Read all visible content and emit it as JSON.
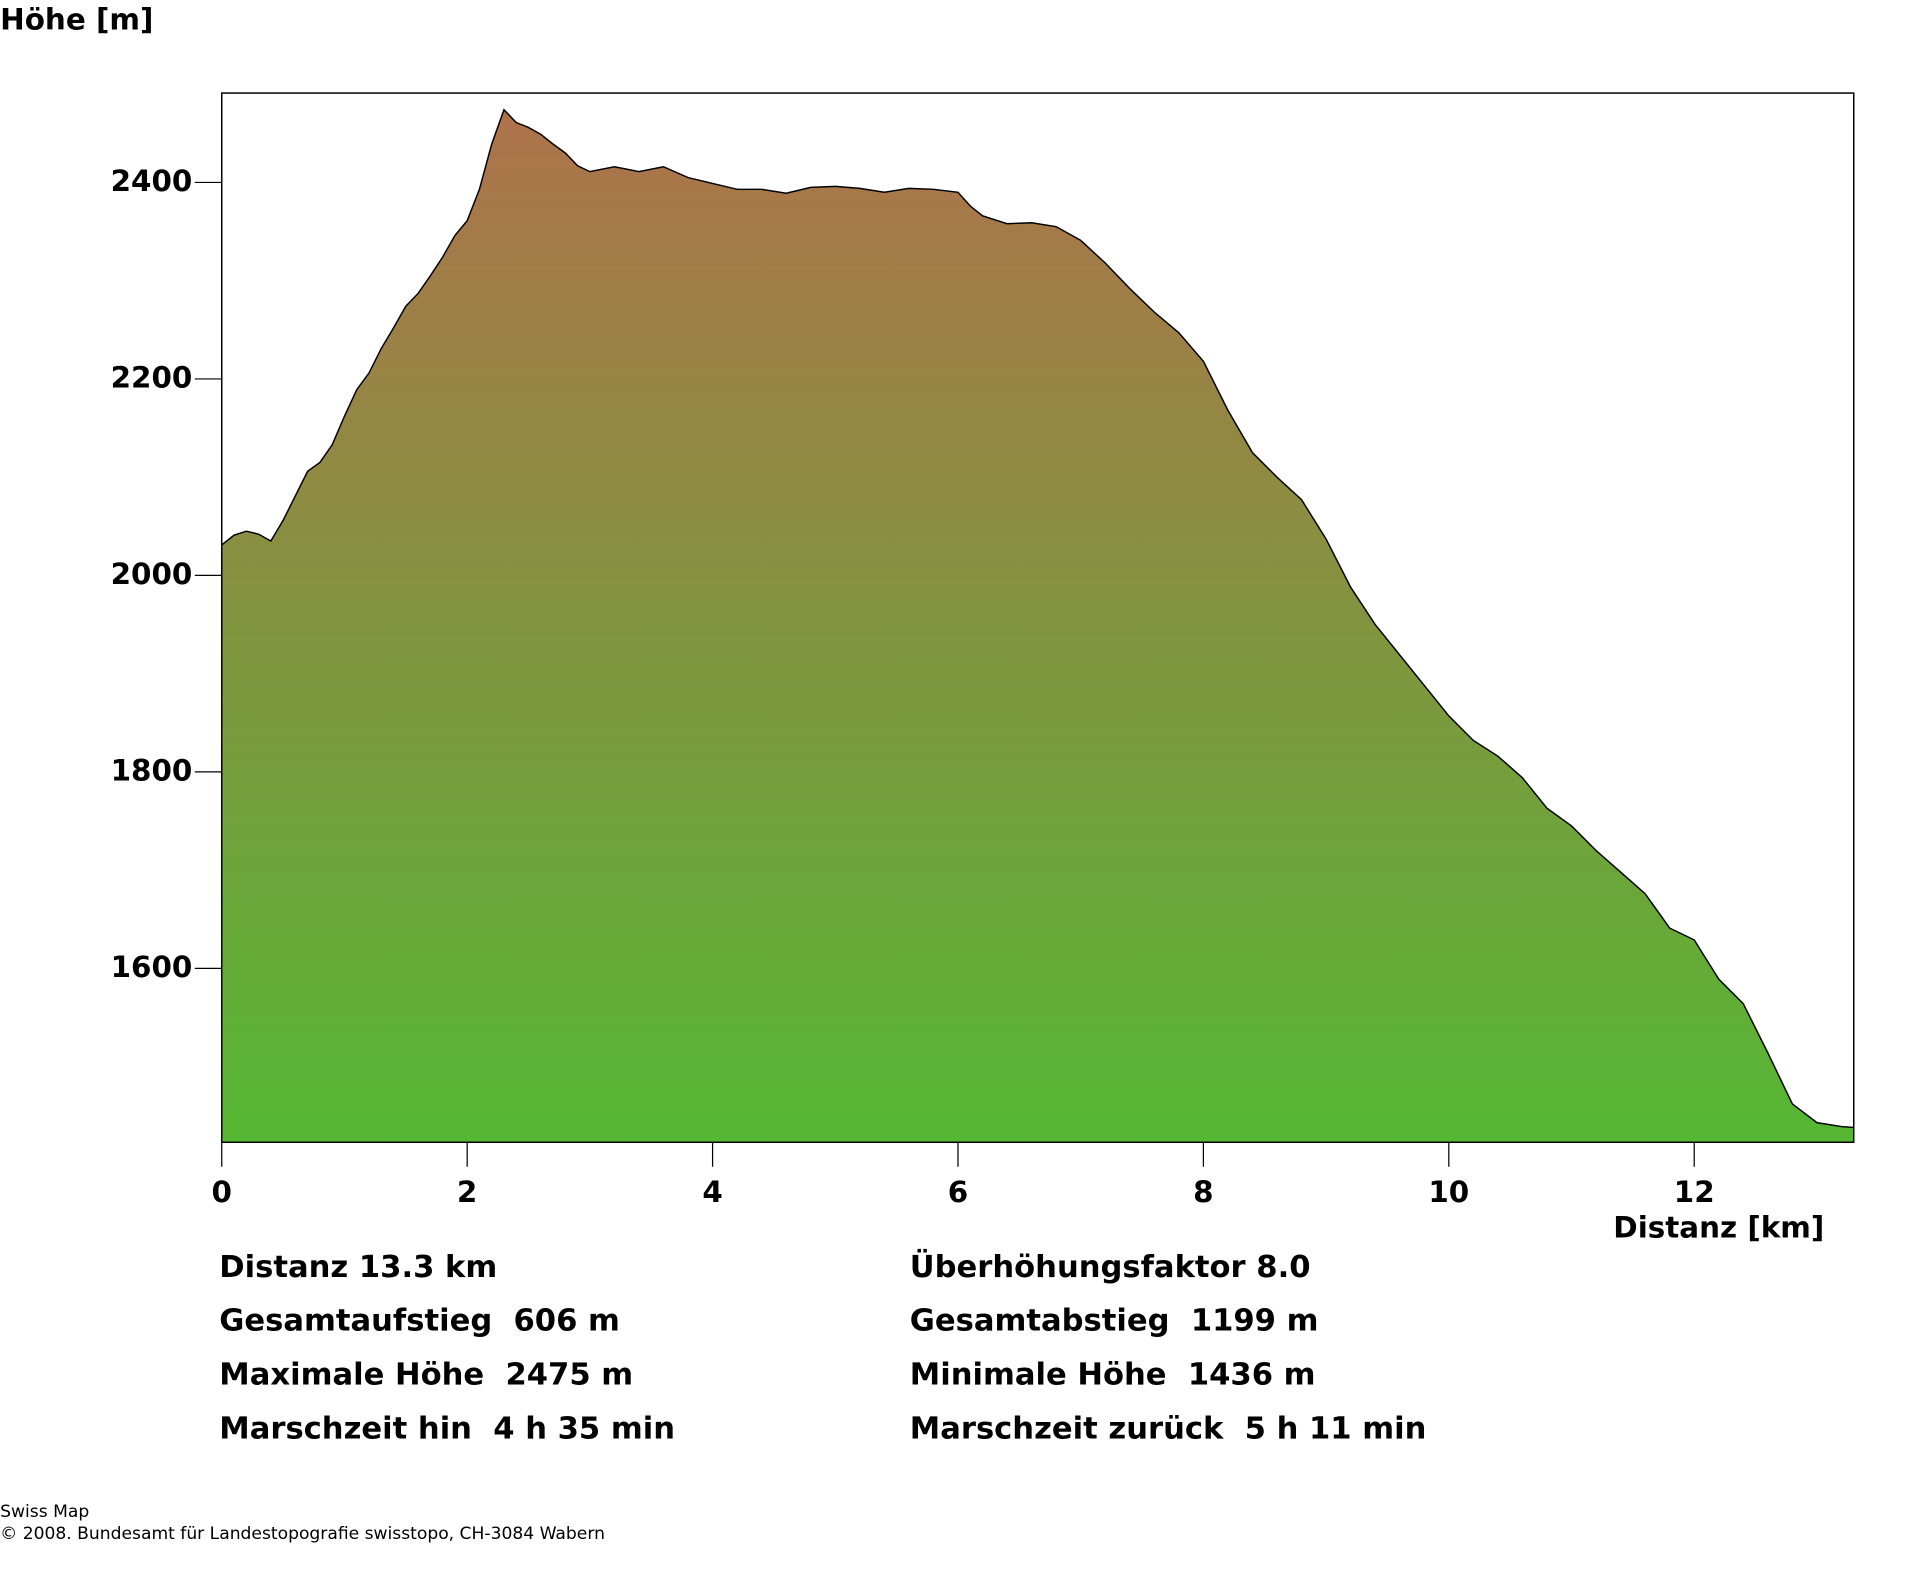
{
  "chart_data": {
    "type": "area",
    "ylabel": "Höhe [m]",
    "xlabel": "Distanz [km]",
    "x": [
      0,
      0.1,
      0.2,
      0.3,
      0.4,
      0.5,
      0.6,
      0.7,
      0.8,
      0.9,
      1.0,
      1.1,
      1.2,
      1.3,
      1.4,
      1.5,
      1.6,
      1.7,
      1.8,
      1.9,
      2.0,
      2.1,
      2.2,
      2.3,
      2.4,
      2.5,
      2.6,
      2.7,
      2.8,
      2.9,
      3.0,
      3.2,
      3.4,
      3.6,
      3.8,
      4.0,
      4.2,
      4.4,
      4.6,
      4.8,
      5.0,
      5.2,
      5.4,
      5.6,
      5.8,
      6.0,
      6.1,
      6.2,
      6.4,
      6.6,
      6.8,
      7.0,
      7.2,
      7.4,
      7.6,
      7.8,
      8.0,
      8.2,
      8.4,
      8.6,
      8.8,
      9.0,
      9.2,
      9.4,
      9.6,
      9.8,
      10.0,
      10.2,
      10.4,
      10.6,
      10.8,
      11.0,
      11.2,
      11.4,
      11.6,
      11.8,
      12.0,
      12.2,
      12.4,
      12.6,
      12.8,
      13.0,
      13.2,
      13.3
    ],
    "values": [
      2031,
      2041,
      2045,
      2042,
      2035,
      2056,
      2081,
      2106,
      2115,
      2133,
      2162,
      2189,
      2206,
      2231,
      2252,
      2274,
      2287,
      2305,
      2324,
      2346,
      2361,
      2393,
      2439,
      2474,
      2461,
      2456,
      2449,
      2439,
      2430,
      2417,
      2411,
      2416,
      2411,
      2416,
      2405,
      2399,
      2393,
      2393,
      2389,
      2395,
      2396,
      2394,
      2390,
      2394,
      2393,
      2390,
      2376,
      2366,
      2358,
      2359,
      2355,
      2341,
      2318,
      2292,
      2268,
      2247,
      2218,
      2168,
      2125,
      2100,
      2077,
      2037,
      1988,
      1950,
      1919,
      1888,
      1857,
      1832,
      1816,
      1794,
      1763,
      1745,
      1720,
      1698,
      1676,
      1641,
      1629,
      1589,
      1564,
      1514,
      1462,
      1443,
      1439,
      1438
    ],
    "xlim": [
      0,
      13.3
    ],
    "ylim": [
      1423,
      2491
    ],
    "xticks": [
      0,
      2,
      4,
      6,
      8,
      10,
      12
    ],
    "yticks": [
      1600,
      1800,
      2000,
      2200,
      2400
    ],
    "colors": [
      "#b0714b",
      "#55b734"
    ],
    "line_color": "#000000"
  },
  "stats": {
    "left": [
      "Distanz 13.3 km",
      "Gesamtaufstieg  606 m",
      "Maximale Höhe  2475 m",
      "Marschzeit hin  4 h 35 min"
    ],
    "right": [
      "Überhöhungsfaktor 8.0",
      "Gesamtabstieg  1199 m",
      "Minimale Höhe  1436 m",
      "Marschzeit zurück  5 h 11 min"
    ]
  },
  "footer": [
    "Swiss Map",
    "© 2008. Bundesamt für Landestopografie swisstopo, CH-3084 Wabern"
  ]
}
